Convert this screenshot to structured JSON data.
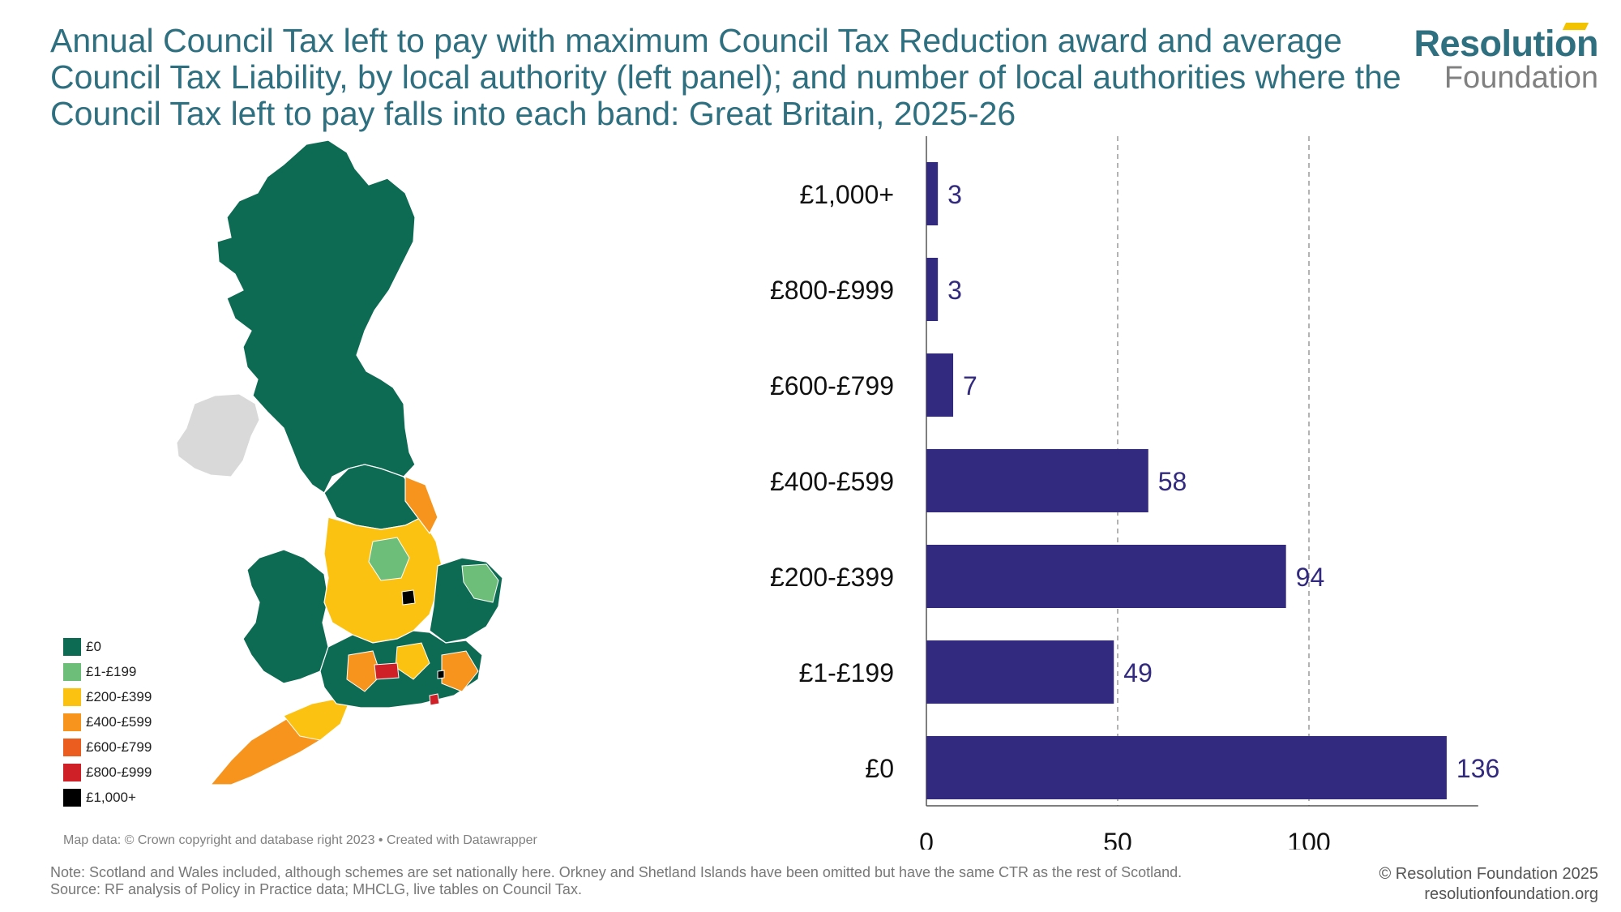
{
  "title": "Annual Council Tax left to pay with maximum Council Tax Reduction award and average Council Tax Liability, by local authority (left panel); and number of local authorities where the Council Tax left to pay falls into each band: Great Britain, 2025-26",
  "logo": {
    "line1": "Resolution",
    "line2": "Foundation"
  },
  "legend": [
    {
      "label": "£0",
      "color": "#0e6b53"
    },
    {
      "label": "£1-£199",
      "color": "#6cbe79"
    },
    {
      "label": "£200-£399",
      "color": "#fcc212"
    },
    {
      "label": "£400-£599",
      "color": "#f7941d"
    },
    {
      "label": "£600-£799",
      "color": "#ea5d1f"
    },
    {
      "label": "£800-£999",
      "color": "#d02027"
    },
    {
      "label": "£1,000+",
      "color": "#000000"
    }
  ],
  "map_credit": "Map data: © Crown copyright and database right 2023 • Created with Datawrapper",
  "chart_data": {
    "type": "bar",
    "orientation": "horizontal",
    "categories": [
      "£1,000+",
      "£800-£999",
      "£600-£799",
      "£400-£599",
      "£200-£399",
      "£1-£199",
      "£0"
    ],
    "values": [
      3,
      3,
      7,
      58,
      94,
      49,
      136
    ],
    "xticks": [
      0,
      50,
      100
    ],
    "xlim": [
      0,
      140
    ],
    "bar_color": "#322a7e",
    "grid": "vertical dashed at 50 and 100"
  },
  "note": "Note: Scotland and Wales included, although schemes are set nationally here. Orkney and Shetland Islands have been omitted but have the same CTR as the rest of Scotland.",
  "source": "Source: RF analysis of Policy in Practice data; MHCLG, live tables on Council Tax.",
  "copyright": "© Resolution Foundation 2025",
  "website": "resolutionfoundation.org"
}
